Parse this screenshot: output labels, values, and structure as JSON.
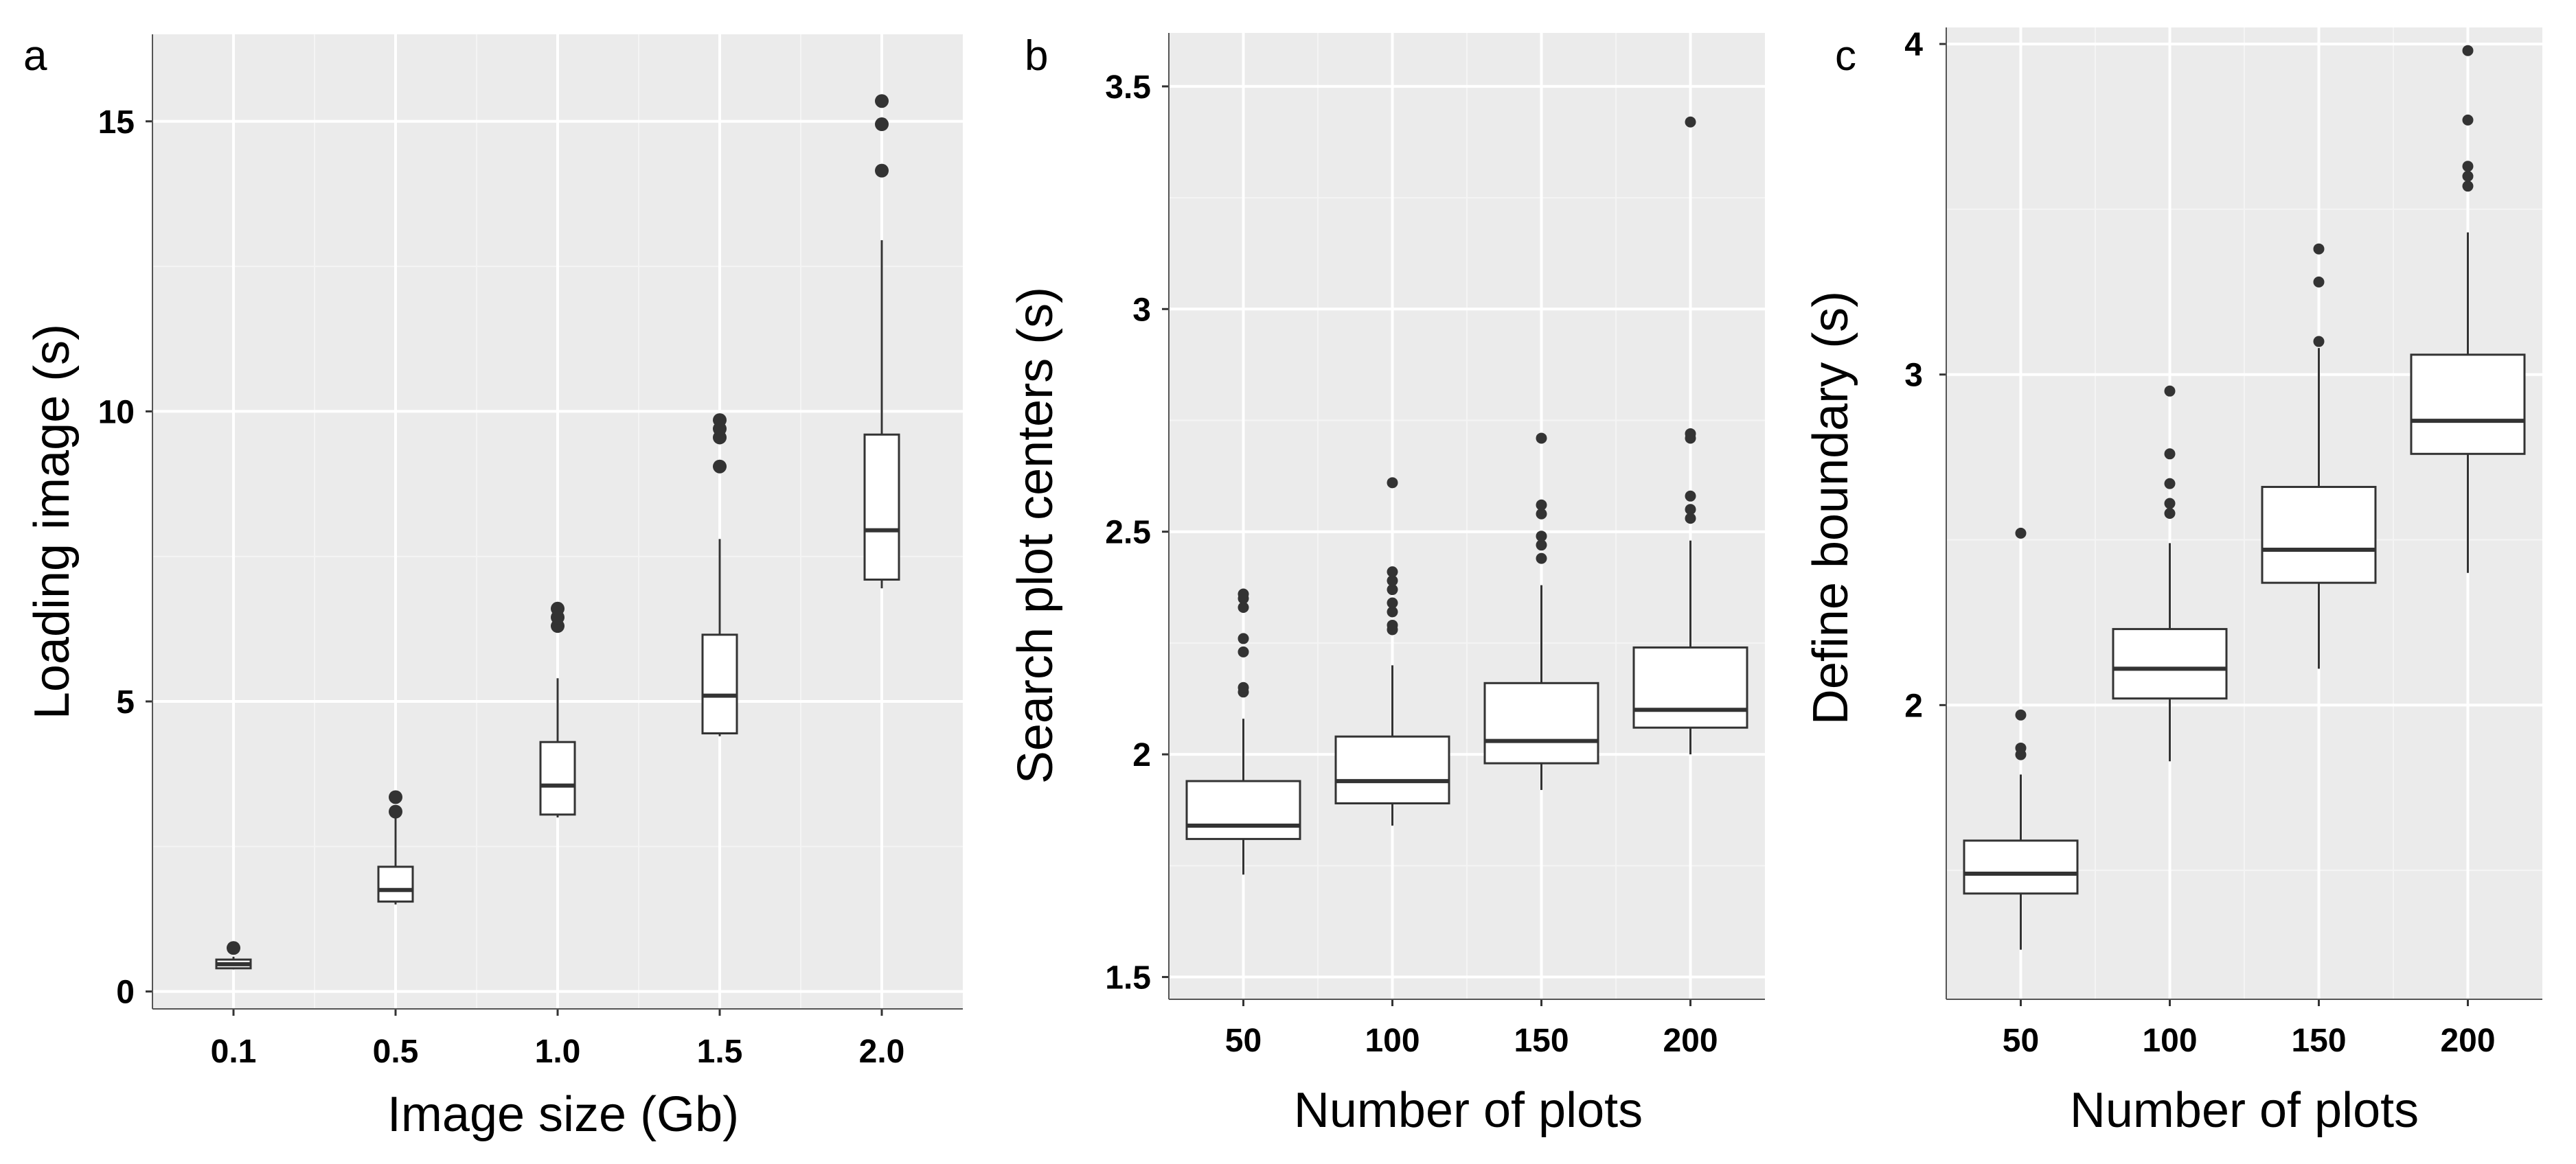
{
  "colors": {
    "panel_bg": "#ebebeb",
    "grid_major": "#ffffff",
    "grid_minor": "#f4f4f4",
    "box_fill": "#ffffff",
    "box_stroke": "#333333",
    "outlier": "#333333"
  },
  "chart_data": [
    {
      "type": "box",
      "panel_label": "a",
      "title": "",
      "xlabel": "Image size (Gb)",
      "ylabel": "Loading image (s)",
      "categories": [
        "0.1",
        "0.5",
        "1.0",
        "1.5",
        "2.0"
      ],
      "ylim": [
        -0.3,
        16.5
      ],
      "yticks": [
        0,
        5,
        10,
        15
      ],
      "ytick_labels": [
        "0",
        "5",
        "10",
        "15"
      ],
      "grid": true,
      "boxes": [
        {
          "category": "0.1",
          "whisker_low": 0.38,
          "q1": 0.4,
          "median": 0.47,
          "q3": 0.55,
          "whisker_high": 0.6,
          "outliers": [
            0.75
          ]
        },
        {
          "category": "0.5",
          "whisker_low": 1.5,
          "q1": 1.55,
          "median": 1.75,
          "q3": 2.15,
          "whisker_high": 3.0,
          "outliers": [
            3.1,
            3.35
          ]
        },
        {
          "category": "1.0",
          "whisker_low": 3.0,
          "q1": 3.05,
          "median": 3.55,
          "q3": 4.3,
          "whisker_high": 5.4,
          "outliers": [
            6.3,
            6.45,
            6.6
          ]
        },
        {
          "category": "1.5",
          "whisker_low": 4.4,
          "q1": 4.45,
          "median": 5.1,
          "q3": 6.15,
          "whisker_high": 7.8,
          "outliers": [
            9.05,
            9.55,
            9.7,
            9.85
          ]
        },
        {
          "category": "2.0",
          "whisker_low": 6.95,
          "q1": 7.1,
          "median": 7.95,
          "q3": 9.6,
          "whisker_high": 12.95,
          "outliers": [
            14.15,
            14.95,
            15.35
          ]
        }
      ]
    },
    {
      "type": "box",
      "panel_label": "b",
      "title": "",
      "xlabel": "Number of plots",
      "ylabel": "Search plot centers (s)",
      "categories": [
        "50",
        "100",
        "150",
        "200"
      ],
      "ylim": [
        1.45,
        3.62
      ],
      "yticks": [
        1.5,
        2,
        2.5,
        3,
        3.5
      ],
      "ytick_labels": [
        "1.5",
        "2",
        "2.5",
        "3",
        "3.5"
      ],
      "grid": true,
      "boxes": [
        {
          "category": "50",
          "whisker_low": 1.73,
          "q1": 1.81,
          "median": 1.84,
          "q3": 1.94,
          "whisker_high": 2.08,
          "outliers": [
            2.14,
            2.15,
            2.23,
            2.26,
            2.33,
            2.35,
            2.36
          ]
        },
        {
          "category": "100",
          "whisker_low": 1.84,
          "q1": 1.89,
          "median": 1.94,
          "q3": 2.04,
          "whisker_high": 2.2,
          "outliers": [
            2.28,
            2.29,
            2.32,
            2.34,
            2.37,
            2.39,
            2.41,
            2.61
          ]
        },
        {
          "category": "150",
          "whisker_low": 1.92,
          "q1": 1.98,
          "median": 2.03,
          "q3": 2.16,
          "whisker_high": 2.38,
          "outliers": [
            2.44,
            2.47,
            2.49,
            2.54,
            2.56,
            2.71
          ]
        },
        {
          "category": "200",
          "whisker_low": 2.0,
          "q1": 2.06,
          "median": 2.1,
          "q3": 2.24,
          "whisker_high": 2.48,
          "outliers": [
            2.53,
            2.55,
            2.58,
            2.71,
            2.72,
            3.42
          ]
        }
      ]
    },
    {
      "type": "box",
      "panel_label": "c",
      "title": "",
      "xlabel": "Number of plots",
      "ylabel": "Define boundary (s)",
      "categories": [
        "50",
        "100",
        "150",
        "200"
      ],
      "ylim": [
        1.11,
        4.05
      ],
      "yticks": [
        2,
        3,
        4
      ],
      "ytick_labels": [
        "2",
        "3",
        "4"
      ],
      "grid": true,
      "boxes": [
        {
          "category": "50",
          "whisker_low": 1.26,
          "q1": 1.43,
          "median": 1.49,
          "q3": 1.59,
          "whisker_high": 1.79,
          "outliers": [
            1.85,
            1.87,
            1.97,
            2.52
          ]
        },
        {
          "category": "100",
          "whisker_low": 1.83,
          "q1": 2.02,
          "median": 2.11,
          "q3": 2.23,
          "whisker_high": 2.49,
          "outliers": [
            2.58,
            2.61,
            2.67,
            2.76,
            2.95
          ]
        },
        {
          "category": "150",
          "whisker_low": 2.11,
          "q1": 2.37,
          "median": 2.47,
          "q3": 2.66,
          "whisker_high": 3.08,
          "outliers": [
            3.1,
            3.28,
            3.38
          ]
        },
        {
          "category": "200",
          "whisker_low": 2.4,
          "q1": 2.76,
          "median": 2.86,
          "q3": 3.06,
          "whisker_high": 3.43,
          "outliers": [
            3.57,
            3.6,
            3.63,
            3.77,
            3.98
          ]
        }
      ]
    }
  ]
}
